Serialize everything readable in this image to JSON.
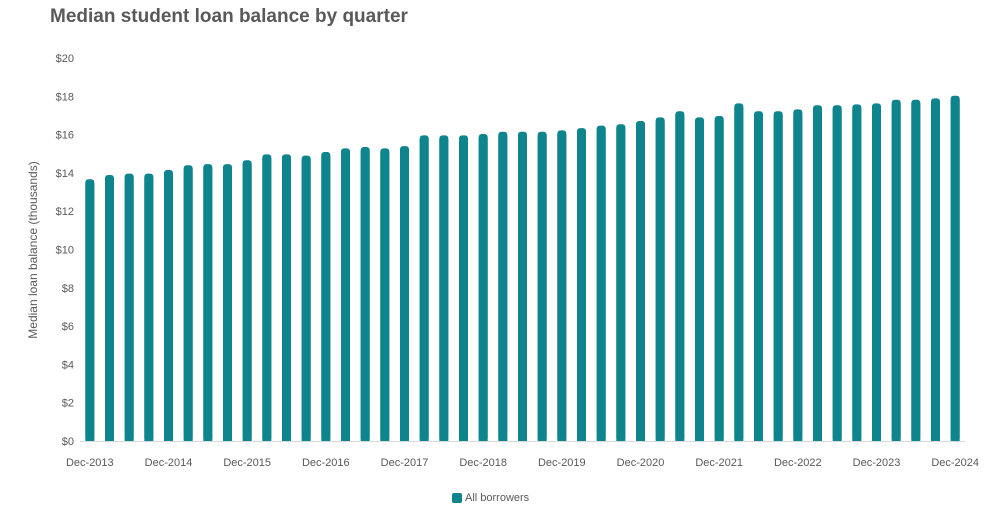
{
  "chart_data": {
    "type": "bar",
    "title": "Median student loan balance by quarter",
    "xlabel": "",
    "ylabel": "Median loan balance (thousands)",
    "ylim": [
      0,
      20
    ],
    "y_ticks": [
      0,
      2,
      4,
      6,
      8,
      10,
      12,
      14,
      16,
      18,
      20
    ],
    "y_tick_prefix": "$",
    "x_tick_labels": [
      "Dec-2013",
      "Dec-2014",
      "Dec-2015",
      "Dec-2016",
      "Dec-2017",
      "Dec-2018",
      "Dec-2019",
      "Dec-2020",
      "Dec-2021",
      "Dec-2022",
      "Dec-2023",
      "Dec-2024"
    ],
    "x_tick_every": 4,
    "grid": false,
    "legend_position": "bottom",
    "series": [
      {
        "name": "All borrowers",
        "color": "#0e848c",
        "values": [
          13.67,
          13.89,
          13.96,
          13.96,
          14.15,
          14.4,
          14.46,
          14.46,
          14.66,
          14.97,
          14.97,
          14.9,
          15.09,
          15.28,
          15.35,
          15.28,
          15.4,
          15.96,
          15.96,
          15.96,
          16.03,
          16.15,
          16.15,
          16.15,
          16.22,
          16.34,
          16.47,
          16.54,
          16.71,
          16.9,
          17.22,
          16.9,
          16.97,
          17.63,
          17.22,
          17.22,
          17.32,
          17.53,
          17.53,
          17.58,
          17.63,
          17.82,
          17.82,
          17.89,
          18.03
        ]
      }
    ]
  }
}
